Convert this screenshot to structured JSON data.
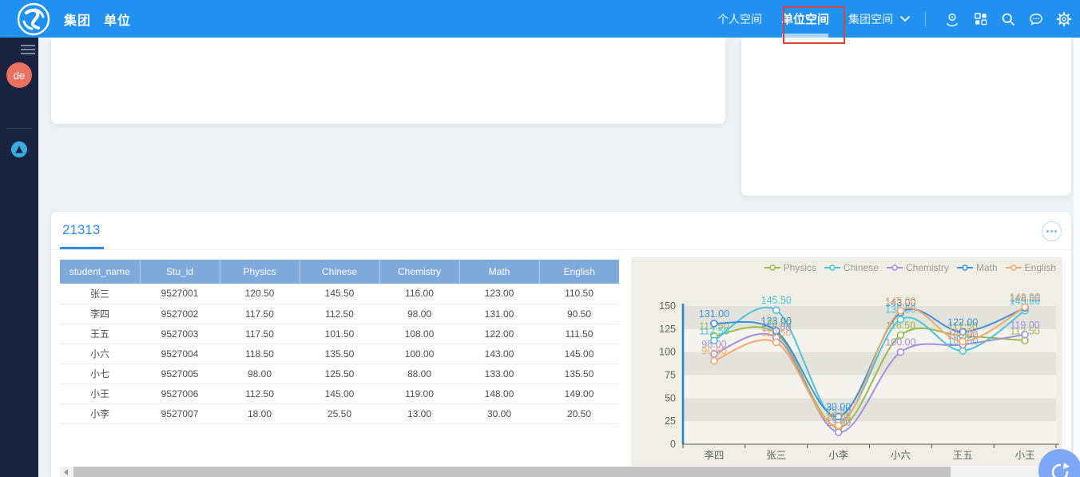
{
  "navbar": {
    "accent_color": "#2191f2",
    "brand": [
      "集团",
      "单位"
    ],
    "spaces": [
      {
        "label": "个人空间",
        "active": false
      },
      {
        "label": "单位空间",
        "active": true
      },
      {
        "label": "集团空间",
        "active": false,
        "has_dropdown": true
      }
    ],
    "icons": [
      "location-icon",
      "apps-grid-icon",
      "search-icon",
      "messages-icon",
      "settings-icon"
    ],
    "annotation_color": "#e23d3d"
  },
  "sidebar": {
    "avatar_label": "de",
    "background": "#1a2340"
  },
  "panel": {
    "tab_label": "21313"
  },
  "table": {
    "header_color": "#7fa8db",
    "columns": [
      "student_name",
      "Stu_id",
      "Physics",
      "Chinese",
      "Chemistry",
      "Math",
      "English"
    ],
    "rows": [
      [
        "张三",
        "9527001",
        "120.50",
        "145.50",
        "116.00",
        "123.00",
        "110.50"
      ],
      [
        "李四",
        "9527002",
        "117.50",
        "112.50",
        "98.00",
        "131.00",
        "90.50"
      ],
      [
        "王五",
        "9527003",
        "117.50",
        "101.50",
        "108.00",
        "122.00",
        "111.50"
      ],
      [
        "小六",
        "9527004",
        "118.50",
        "135.50",
        "100.00",
        "143.00",
        "145.00"
      ],
      [
        "小七",
        "9527005",
        "98.00",
        "125.50",
        "88.00",
        "133.00",
        "135.50"
      ],
      [
        "小王",
        "9527006",
        "112.50",
        "145.00",
        "119.00",
        "148.00",
        "149.00"
      ],
      [
        "小李",
        "9527007",
        "18.00",
        "25.50",
        "13.00",
        "30.00",
        "20.50"
      ]
    ]
  },
  "chart_data": {
    "type": "line",
    "smooth": true,
    "title": "",
    "xlabel": "",
    "ylabel": "",
    "background": "#f0efe5",
    "legend_position": "top-right",
    "categories": [
      "李四",
      "张三",
      "小李",
      "小六",
      "王五",
      "小王"
    ],
    "series": [
      {
        "name": "Physics",
        "color": "#9bbb4d",
        "values": [
          117.5,
          120.5,
          18,
          118.5,
          117.5,
          112.5
        ]
      },
      {
        "name": "Chinese",
        "color": "#4cc4d9",
        "values": [
          112.5,
          145.5,
          25.5,
          135.5,
          101.5,
          145
        ]
      },
      {
        "name": "Chemistry",
        "color": "#a091e0",
        "values": [
          98,
          116,
          13,
          100,
          108,
          119
        ]
      },
      {
        "name": "Math",
        "color": "#3f90dc",
        "values": [
          131,
          123,
          30,
          143,
          122,
          148
        ]
      },
      {
        "name": "English",
        "color": "#f2a86b",
        "values": [
          90.5,
          110.5,
          20.5,
          145,
          111.5,
          149
        ]
      }
    ],
    "ylim": [
      0,
      150
    ],
    "ytick_interval": 25,
    "yticks": [
      0,
      25,
      50,
      75,
      100,
      125,
      150
    ],
    "grid": false,
    "split_area": true,
    "point_labels": "2-decimals",
    "yaxis_line_color": "#1e87d8"
  }
}
